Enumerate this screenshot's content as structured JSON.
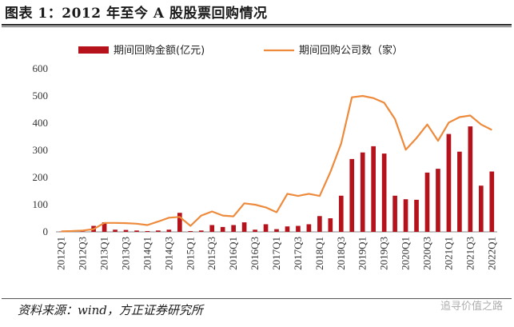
{
  "title": "图表 1：2012 年至今 A 股股票回购情况",
  "source": "资料来源：wind，方正证券研究所",
  "watermark": "追寻价值之路",
  "colors": {
    "bar": "#b5121b",
    "line": "#ee8a3c",
    "grid": "#bfbfbf"
  },
  "chart_data": {
    "type": "bar+line",
    "categories": [
      "2012Q1",
      "2012Q2",
      "2012Q3",
      "2012Q4",
      "2013Q1",
      "2013Q2",
      "2013Q3",
      "2013Q4",
      "2014Q1",
      "2014Q2",
      "2014Q3",
      "2014Q4",
      "2015Q1",
      "2015Q2",
      "2015Q3",
      "2015Q4",
      "2016Q1",
      "2016Q2",
      "2016Q3",
      "2016Q4",
      "2017Q1",
      "2017Q2",
      "2017Q3",
      "2017Q4",
      "2018Q1",
      "2018Q2",
      "2018Q3",
      "2018Q4",
      "2019Q1",
      "2019Q2",
      "2019Q3",
      "2019Q4",
      "2020Q1",
      "2020Q2",
      "2020Q3",
      "2020Q4",
      "2021Q1",
      "2021Q2",
      "2021Q3",
      "2021Q4",
      "2022Q1"
    ],
    "tick_labels": [
      "2012Q1",
      "2012Q3",
      "2013Q1",
      "2013Q3",
      "2014Q1",
      "2014Q3",
      "2015Q1",
      "2015Q3",
      "2016Q1",
      "2016Q3",
      "2017Q1",
      "2017Q3",
      "2018Q1",
      "2018Q3",
      "2019Q1",
      "2019Q3",
      "2020Q1",
      "2020Q3",
      "2021Q1",
      "2021Q3",
      "2022Q1"
    ],
    "ylim": [
      0,
      600
    ],
    "yticks": [
      0,
      100,
      200,
      300,
      400,
      500,
      600
    ],
    "legend_position": "top",
    "series": [
      {
        "name": "期间回购金额(亿元)",
        "kind": "bar",
        "values": [
          1,
          1,
          2,
          22,
          35,
          8,
          7,
          5,
          3,
          5,
          8,
          70,
          3,
          5,
          25,
          18,
          25,
          35,
          8,
          28,
          10,
          20,
          22,
          28,
          58,
          50,
          133,
          268,
          292,
          315,
          288,
          133,
          120,
          118,
          218,
          232,
          360,
          295,
          388,
          170,
          222
        ]
      },
      {
        "name": "期间回购公司数（家）",
        "kind": "line",
        "values": [
          2,
          3,
          5,
          10,
          33,
          33,
          32,
          30,
          25,
          38,
          52,
          55,
          22,
          60,
          75,
          60,
          57,
          105,
          100,
          90,
          72,
          140,
          132,
          140,
          132,
          220,
          325,
          495,
          500,
          492,
          475,
          415,
          302,
          345,
          395,
          335,
          402,
          422,
          428,
          395,
          375
        ]
      }
    ]
  }
}
